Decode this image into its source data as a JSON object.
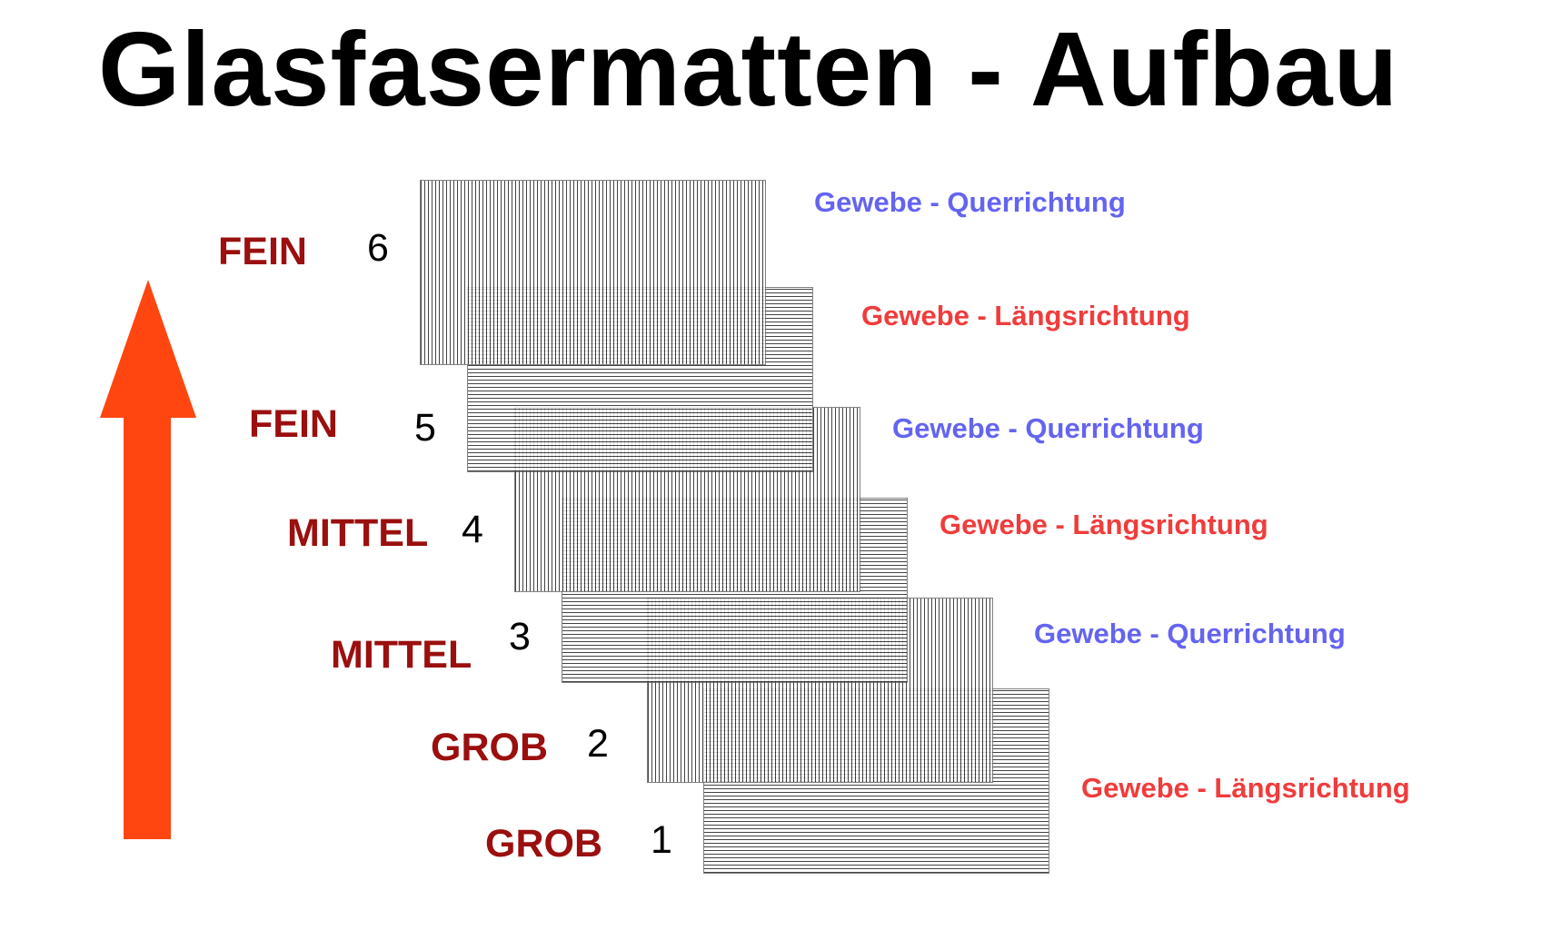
{
  "title": "Glasfasermatten - Aufbau",
  "colors": {
    "arrow": "#ff4510",
    "coarseness_label": "#9b0f0f",
    "quer": "#6464f0",
    "laengs": "#f03c3c"
  },
  "layers": [
    {
      "number": "6",
      "coarseness": "FEIN",
      "direction": "quer",
      "fabric": "Gewebe - Querrichtung"
    },
    {
      "number": "5",
      "coarseness": "FEIN",
      "direction": "laengs",
      "fabric": "Gewebe - Längsrichtung"
    },
    {
      "number": "4",
      "coarseness": "MITTEL",
      "direction": "quer",
      "fabric": "Gewebe - Querrichtung"
    },
    {
      "number": "3",
      "coarseness": "MITTEL",
      "direction": "laengs",
      "fabric": "Gewebe - Längsrichtung"
    },
    {
      "number": "2",
      "coarseness": "GROB",
      "direction": "quer",
      "fabric": "Gewebe - Querrichtung"
    },
    {
      "number": "1",
      "coarseness": "GROB",
      "direction": "laengs",
      "fabric": "Gewebe - Längsrichtung"
    }
  ]
}
